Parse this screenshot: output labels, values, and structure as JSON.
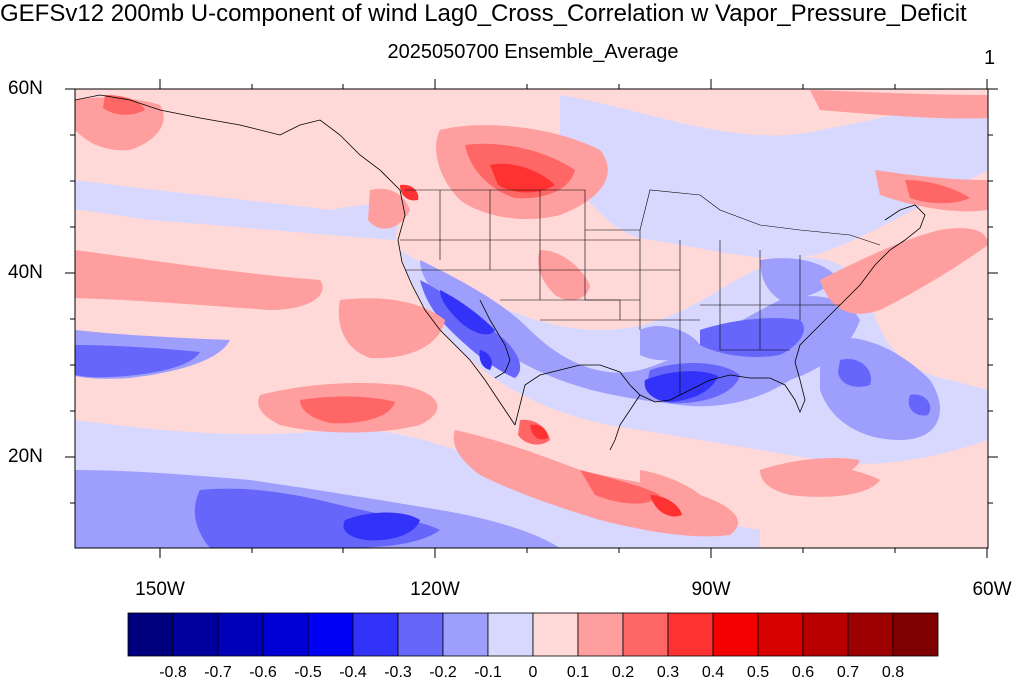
{
  "title": "GEFSv12 200mb U-component of wind Lag0_Cross_Correlation w Vapor_Pressure_Deficit",
  "subtitle": "2025050700 Ensemble_Average",
  "panel_number": "1",
  "lat_labels": [
    "60N",
    "40N",
    "20N"
  ],
  "lon_labels": [
    "150W",
    "120W",
    "90W",
    "60W"
  ],
  "colorbar": {
    "colors": [
      "#00007f",
      "#00009c",
      "#0000b9",
      "#0000d6",
      "#0000f4",
      "#3232f8",
      "#6666fa",
      "#9e9efc",
      "#d8d8fe",
      "#ffd8d8",
      "#ff9e9e",
      "#ff6666",
      "#ff3232",
      "#f40000",
      "#d60000",
      "#b90000",
      "#9c0000",
      "#7f0000"
    ],
    "labels": [
      "-0.8",
      "-0.7",
      "-0.6",
      "-0.5",
      "-0.4",
      "-0.3",
      "-0.2",
      "-0.1",
      "0",
      "0.1",
      "0.2",
      "0.3",
      "0.4",
      "0.5",
      "0.6",
      "0.7",
      "0.8"
    ]
  },
  "map": {
    "lat_range": [
      10,
      60
    ],
    "lon_range": [
      -160,
      -60
    ],
    "field": "correlation"
  }
}
